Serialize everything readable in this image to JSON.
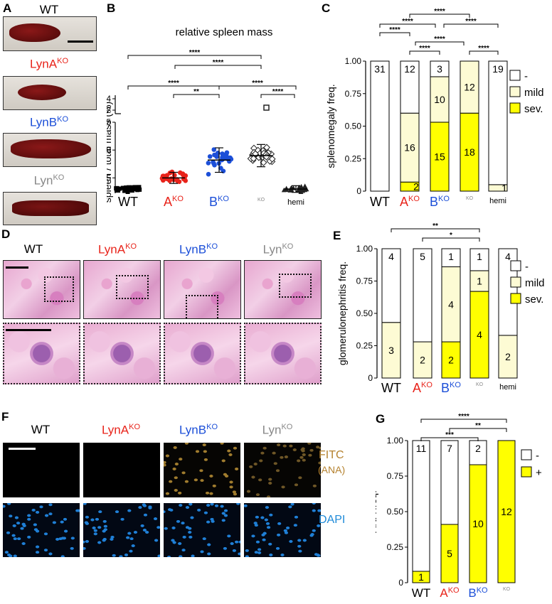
{
  "panel_letters": {
    "A": "A",
    "B": "B",
    "C": "C",
    "D": "D",
    "E": "E",
    "F": "F",
    "G": "G"
  },
  "colors": {
    "wt": "#000000",
    "a": "#e8231a",
    "b": "#1c4fd8",
    "ko": "#888888",
    "yellow": "#ffff00",
    "mild": "#fdfbd4",
    "fitc": "#b5822f",
    "dapi": "#1e8ad8"
  },
  "panelA": {
    "labels": [
      {
        "text": "WT",
        "sup": "",
        "color": "wt"
      },
      {
        "text": "LynA",
        "sup": "KO",
        "color": "a"
      },
      {
        "text": "LynB",
        "sup": "KO",
        "color": "b"
      },
      {
        "text": "Lyn",
        "sup": "KO",
        "color": "ko"
      }
    ]
  },
  "panelB": {
    "title": "relative spleen mass",
    "ylabel": "spleen / total mass (%)",
    "groups": [
      {
        "label": "WT",
        "sup": "",
        "color": "wt"
      },
      {
        "label": "A",
        "sup": "KO",
        "color": "a"
      },
      {
        "label": "B",
        "sup": "KO",
        "color": "b"
      },
      {
        "label": "",
        "sup": "KO",
        "color": "ko"
      },
      {
        "label": "hemi",
        "sup": "",
        "color": "wt"
      }
    ],
    "yticks": [
      "0.5",
      "1.0",
      "1.5",
      "2",
      "4"
    ],
    "sig": [
      {
        "from": 0,
        "to": 3,
        "label": "****"
      },
      {
        "from": 1,
        "to": 3,
        "label": "****"
      },
      {
        "from": 0,
        "to": 2,
        "label": "****"
      },
      {
        "from": 2,
        "to": 4,
        "label": "****"
      },
      {
        "from": 1,
        "to": 2,
        "label": "**"
      },
      {
        "from": 3,
        "to": 4,
        "label": "****"
      }
    ]
  },
  "chart_data": [
    {
      "type": "scatter",
      "title": "relative spleen mass",
      "ylabel": "spleen / total mass (%)",
      "categories": [
        "WT",
        "AKO",
        "BKO",
        "KO",
        "hemi"
      ],
      "means": [
        0.3,
        0.5,
        0.82,
        0.9,
        0.3
      ],
      "sd": [
        0.05,
        0.1,
        0.22,
        0.2,
        0.06
      ],
      "yticks": [
        0.5,
        1.0,
        1.5,
        2,
        4
      ]
    },
    {
      "type": "bar",
      "ylabel": "splenomegaly freq.",
      "categories": [
        "WT",
        "AKO",
        "BKO",
        "KO",
        "hemi"
      ],
      "series": [
        {
          "name": "-",
          "values": [
            1.0,
            0.4,
            0.12,
            0.0,
            0.95
          ],
          "labels": [
            "31",
            "12",
            "3",
            "",
            "19"
          ]
        },
        {
          "name": "mild",
          "values": [
            0.0,
            0.53,
            0.35,
            0.4,
            0.05
          ],
          "labels": [
            "",
            "16",
            "10",
            "12",
            "1"
          ]
        },
        {
          "name": "sev.",
          "values": [
            0.0,
            0.07,
            0.53,
            0.6,
            0.0
          ],
          "labels": [
            "",
            "2",
            "15",
            "18",
            ""
          ]
        }
      ],
      "yticks": [
        "0",
        "0.25",
        "0.50",
        "0.75",
        "1.00"
      ]
    },
    {
      "type": "bar",
      "ylabel": "glomerulonephritis freq.",
      "categories": [
        "WT",
        "AKO",
        "BKO",
        "KO",
        "hemi"
      ],
      "series": [
        {
          "name": "-",
          "values": [
            0.57,
            0.72,
            0.14,
            0.17,
            0.67
          ],
          "labels": [
            "4",
            "5",
            "1",
            "1",
            "4"
          ]
        },
        {
          "name": "mild",
          "values": [
            0.43,
            0.28,
            0.58,
            0.16,
            0.33
          ],
          "labels": [
            "3",
            "2",
            "4",
            "1",
            "2"
          ]
        },
        {
          "name": "sev.",
          "values": [
            0.0,
            0.0,
            0.28,
            0.67,
            0.0
          ],
          "labels": [
            "",
            "",
            "2",
            "4",
            ""
          ]
        }
      ],
      "yticks": [
        "0",
        "0.25",
        "0.50",
        "0.75",
        "1.00"
      ]
    },
    {
      "type": "bar",
      "ylabel": "ANA freq.",
      "categories": [
        "WT",
        "AKO",
        "BKO",
        "KO"
      ],
      "series": [
        {
          "name": "-",
          "values": [
            0.92,
            0.59,
            0.17,
            0.0
          ],
          "labels": [
            "11",
            "7",
            "2",
            ""
          ]
        },
        {
          "name": "+",
          "values": [
            0.08,
            0.41,
            0.83,
            1.0
          ],
          "labels": [
            "1",
            "5",
            "10",
            "12"
          ]
        }
      ],
      "yticks": [
        "0",
        "0.25",
        "0.50",
        "0.75",
        "1.00"
      ]
    }
  ],
  "panelC": {
    "sig": [
      {
        "from": 1,
        "to": 3,
        "label": "****"
      },
      {
        "from": 0,
        "to": 2,
        "label": "****"
      },
      {
        "from": 2,
        "to": 4,
        "label": "****"
      },
      {
        "from": 0,
        "to": 1,
        "label": "****"
      },
      {
        "from": 1,
        "to": 3,
        "label": "****"
      },
      {
        "from": 1,
        "to": 2,
        "label": "****"
      },
      {
        "from": 3,
        "to": 4,
        "label": "****"
      }
    ],
    "legend": [
      "-",
      "mild",
      "sev."
    ]
  },
  "panelD": {
    "headers": [
      {
        "text": "WT",
        "sup": "",
        "color": "wt"
      },
      {
        "text": "LynA",
        "sup": "KO",
        "color": "a"
      },
      {
        "text": "LynB",
        "sup": "KO",
        "color": "b"
      },
      {
        "text": "Lyn",
        "sup": "KO",
        "color": "ko"
      }
    ]
  },
  "panelE": {
    "sig": [
      {
        "from": 0,
        "to": 3,
        "label": "**"
      },
      {
        "from": 1,
        "to": 3,
        "label": "*"
      }
    ],
    "legend": [
      "-",
      "mild",
      "sev."
    ]
  },
  "panelF": {
    "headers": [
      {
        "text": "WT",
        "sup": "",
        "color": "wt"
      },
      {
        "text": "LynA",
        "sup": "KO",
        "color": "a"
      },
      {
        "text": "LynB",
        "sup": "KO",
        "color": "b"
      },
      {
        "text": "Lyn",
        "sup": "KO",
        "color": "ko"
      }
    ],
    "fitc_label": "FITC",
    "ana_label": "(ANA)",
    "dapi_label": "DAPI"
  },
  "panelG": {
    "sig": [
      {
        "from": 0,
        "to": 3,
        "label": "****"
      },
      {
        "from": 1,
        "to": 3,
        "label": "**"
      },
      {
        "from": 0,
        "to": 2,
        "label": "***"
      }
    ],
    "legend": [
      "-",
      "+"
    ]
  }
}
